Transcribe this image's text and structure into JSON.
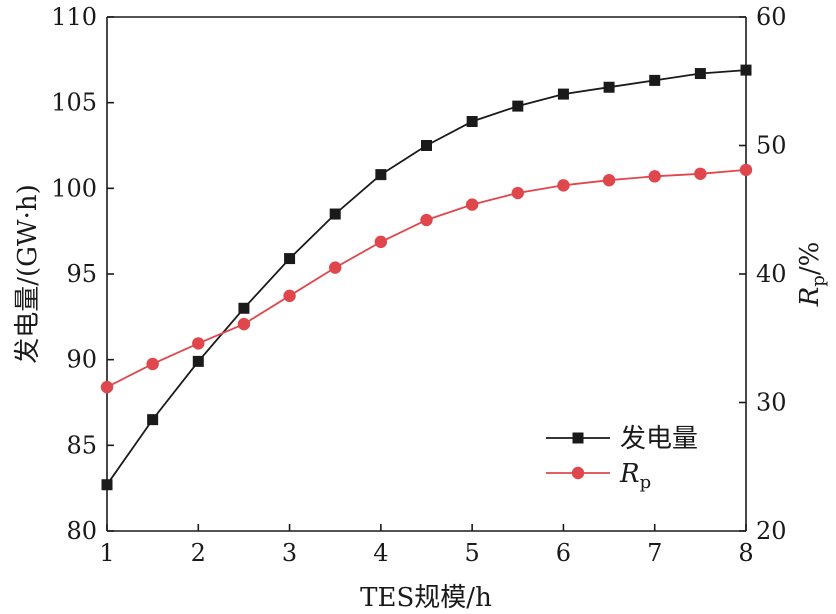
{
  "chart_data": {
    "type": "line",
    "xlabel": "TES规模/h",
    "ylabel_left": "发电量/(GW·h)",
    "ylabel_right_main": "R",
    "ylabel_right_sub": "p",
    "ylabel_right_suffix": "/%",
    "xlim": [
      1,
      8
    ],
    "ylim_left": [
      80,
      110
    ],
    "ylim_right": [
      20,
      60
    ],
    "x_ticks": [
      "1",
      "2",
      "3",
      "4",
      "5",
      "6",
      "7",
      "8"
    ],
    "y_left_ticks": [
      "80",
      "85",
      "90",
      "95",
      "100",
      "105",
      "110"
    ],
    "y_right_ticks": [
      "20",
      "30",
      "40",
      "50",
      "60"
    ],
    "grid": false,
    "legend_position": "bottom-right",
    "series": [
      {
        "name": "发电量",
        "axis": "left",
        "color": "#1a1a1a",
        "marker": "square",
        "x": [
          1,
          1.5,
          2,
          2.5,
          3,
          3.5,
          4,
          4.5,
          5,
          5.5,
          6,
          6.5,
          7,
          7.5,
          8
        ],
        "values": [
          82.7,
          86.5,
          89.9,
          93.0,
          95.9,
          98.5,
          100.8,
          102.5,
          103.9,
          104.8,
          105.5,
          105.9,
          106.3,
          106.7,
          106.9
        ]
      },
      {
        "name_main": "R",
        "name_sub": "p",
        "axis": "right",
        "color": "#e0474c",
        "marker": "circle",
        "x": [
          1,
          1.5,
          2,
          2.5,
          3,
          3.5,
          4,
          4.5,
          5,
          5.5,
          6,
          6.5,
          7,
          7.5,
          8
        ],
        "values": [
          31.2,
          33.0,
          34.6,
          36.1,
          38.3,
          40.5,
          42.5,
          44.2,
          45.4,
          46.3,
          46.9,
          47.3,
          47.6,
          47.8,
          48.1
        ]
      }
    ]
  }
}
